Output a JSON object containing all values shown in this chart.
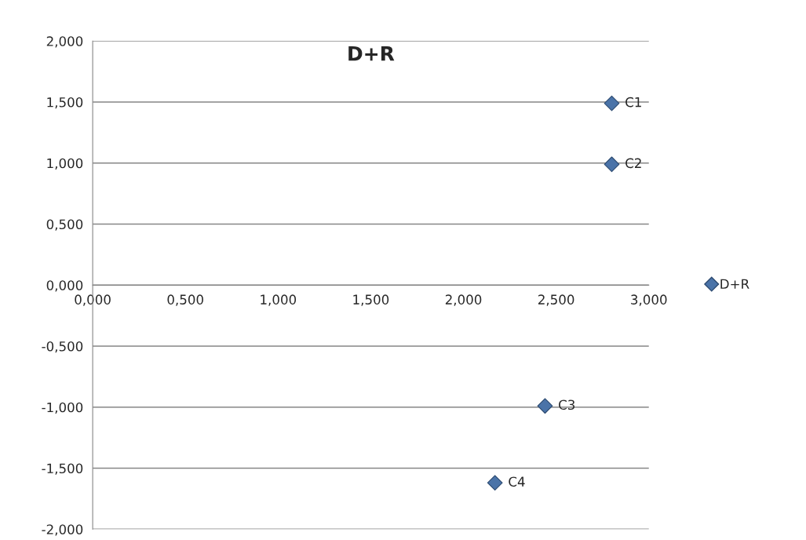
{
  "chart_data": {
    "type": "scatter",
    "title": "D+R",
    "x": [
      2.8,
      2.8,
      2.44,
      2.17
    ],
    "series": [
      {
        "name": "D+R",
        "color": "#4a73a8",
        "values": [
          1.49,
          0.99,
          -0.99,
          -1.62
        ]
      }
    ],
    "xlim": [
      0,
      3
    ],
    "ylim": [
      -2,
      2
    ],
    "xticks": [
      {
        "value": 0,
        "label": "0,000"
      },
      {
        "value": 0.5,
        "label": "0,500"
      },
      {
        "value": 1,
        "label": "1,000"
      },
      {
        "value": 1.5,
        "label": "1,500"
      },
      {
        "value": 2,
        "label": "2,000"
      },
      {
        "value": 2.5,
        "label": "2,500"
      },
      {
        "value": 3,
        "label": "3,000"
      }
    ],
    "yticks": [
      {
        "value": -2,
        "label": "-2,000"
      },
      {
        "value": -1.5,
        "label": "-1,500"
      },
      {
        "value": -1,
        "label": "-1,000"
      },
      {
        "value": -0.5,
        "label": "-0,500"
      },
      {
        "value": 0,
        "label": "0,000"
      },
      {
        "value": 0.5,
        "label": "0,500"
      },
      {
        "value": 1,
        "label": "1,000"
      },
      {
        "value": 1.5,
        "label": "1,500"
      },
      {
        "value": 2,
        "label": "2,000"
      }
    ],
    "annotations": [
      {
        "text": "C1",
        "x": 2.8,
        "y": 1.49
      },
      {
        "text": "C2",
        "x": 2.8,
        "y": 0.99
      },
      {
        "text": "C3",
        "x": 2.44,
        "y": -0.99
      },
      {
        "text": "C4",
        "x": 2.17,
        "y": -1.62
      }
    ],
    "grid": "y",
    "legend": "right",
    "marker": "diamond"
  }
}
